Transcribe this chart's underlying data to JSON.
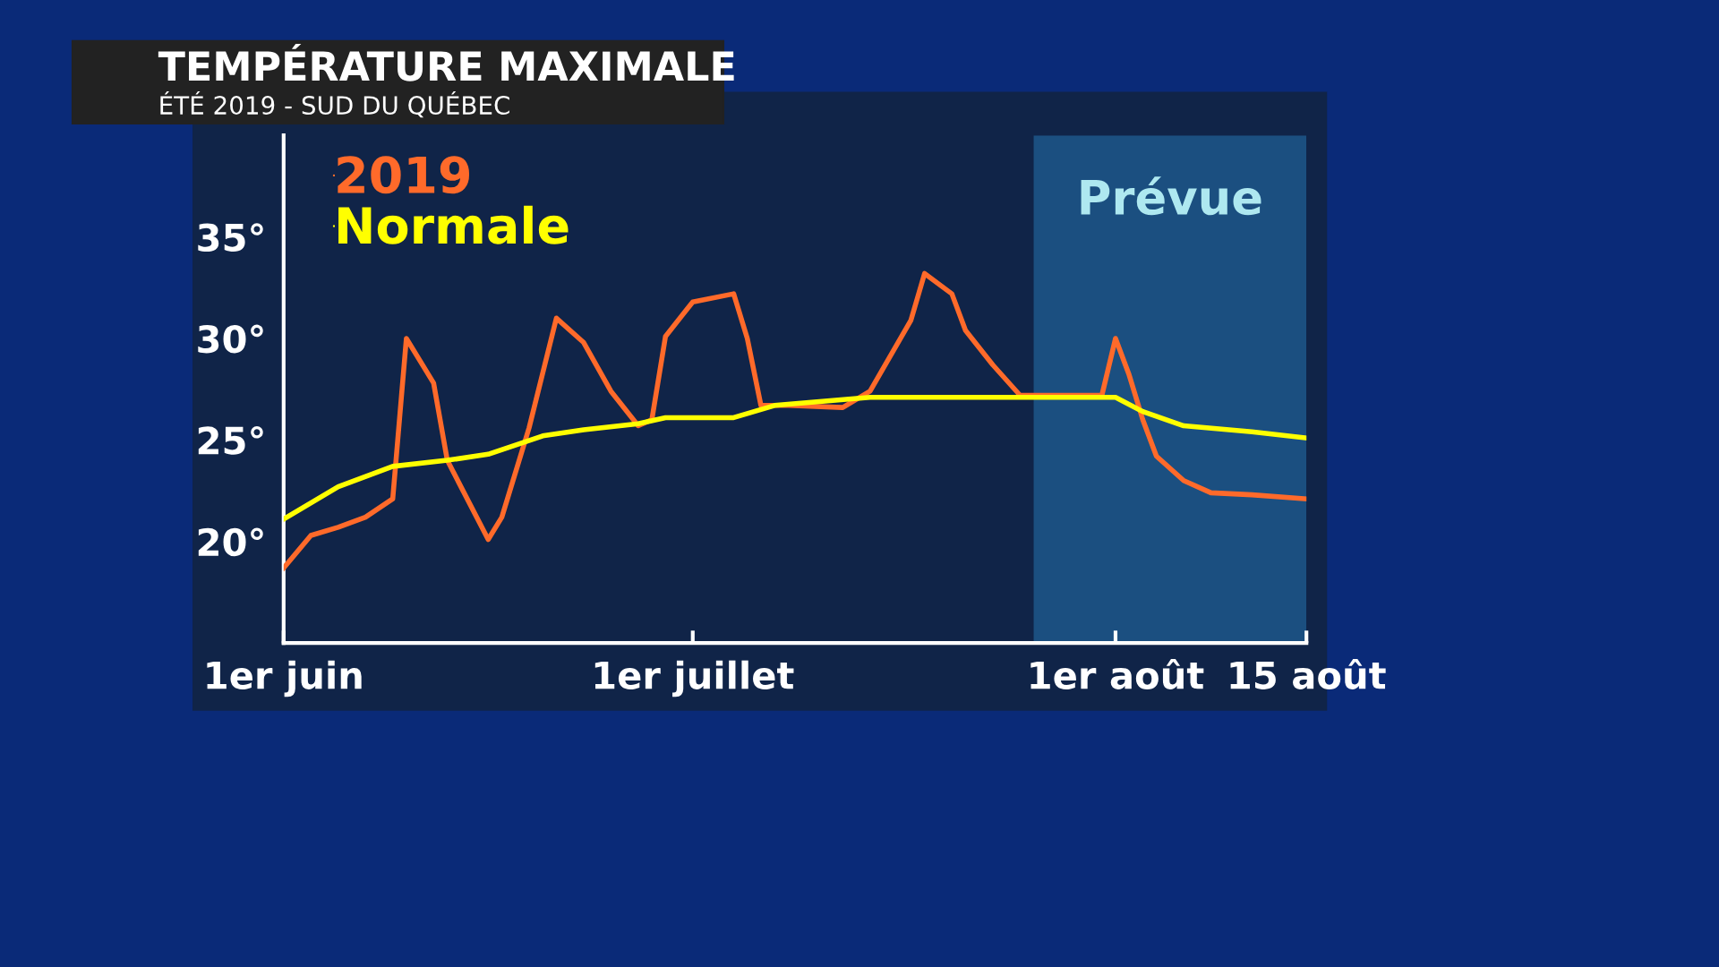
{
  "chart_data": {
    "type": "line",
    "title": "TEMPÉRATURE MAXIMALE",
    "subtitle": "ÉTÉ 2019 - SUD DU QUÉBEC",
    "series": [
      {
        "name": "2019",
        "color": "#ff6a2a",
        "x": [
          "2019-06-01",
          "2019-06-03",
          "2019-06-05",
          "2019-06-07",
          "2019-06-09",
          "2019-06-10",
          "2019-06-12",
          "2019-06-13",
          "2019-06-16",
          "2019-06-17",
          "2019-06-19",
          "2019-06-21",
          "2019-06-23",
          "2019-06-25",
          "2019-06-27",
          "2019-06-28",
          "2019-06-29",
          "2019-07-01",
          "2019-07-04",
          "2019-07-05",
          "2019-07-06",
          "2019-07-08",
          "2019-07-12",
          "2019-07-14",
          "2019-07-17",
          "2019-07-18",
          "2019-07-20",
          "2019-07-21",
          "2019-07-23",
          "2019-07-25",
          "2019-07-31",
          "2019-08-01",
          "2019-08-02",
          "2019-08-03",
          "2019-08-04",
          "2019-08-06",
          "2019-08-08",
          "2019-08-11",
          "2019-08-15"
        ],
        "values": [
          18.7,
          20.3,
          20.7,
          21.2,
          22.1,
          30.0,
          27.8,
          24.0,
          20.1,
          21.2,
          25.6,
          31.0,
          29.8,
          27.4,
          25.7,
          26.0,
          30.1,
          31.8,
          32.2,
          30.0,
          26.7,
          26.7,
          26.6,
          27.4,
          30.9,
          33.2,
          32.2,
          30.4,
          28.7,
          27.2,
          27.2,
          30.0,
          28.2,
          26.0,
          24.2,
          23.0,
          22.4,
          22.3,
          22.1
        ]
      },
      {
        "name": "Normale",
        "color": "#ffff00",
        "x": [
          "2019-06-01",
          "2019-06-05",
          "2019-06-09",
          "2019-06-13",
          "2019-06-16",
          "2019-06-20",
          "2019-06-23",
          "2019-06-27",
          "2019-06-29",
          "2019-07-04",
          "2019-07-07",
          "2019-07-14",
          "2019-08-01",
          "2019-08-03",
          "2019-08-06",
          "2019-08-11",
          "2019-08-15"
        ],
        "values": [
          21.1,
          22.7,
          23.7,
          24.0,
          24.3,
          25.2,
          25.5,
          25.8,
          26.1,
          26.1,
          26.7,
          27.1,
          27.1,
          26.4,
          25.7,
          25.4,
          25.1
        ]
      }
    ],
    "xlim": [
      "2019-06-01",
      "2019-08-15"
    ],
    "xticks": [
      {
        "value": "2019-06-01",
        "label": "1er juin"
      },
      {
        "value": "2019-07-01",
        "label": "1er juillet"
      },
      {
        "value": "2019-08-01",
        "label": "1er août"
      },
      {
        "value": "2019-08-15",
        "label": "15 août"
      }
    ],
    "ylim": [
      15,
      40
    ],
    "yticks": [
      {
        "value": 20,
        "label": "20°"
      },
      {
        "value": 25,
        "label": "25°"
      },
      {
        "value": 30,
        "label": "30°"
      },
      {
        "value": 35,
        "label": "35°"
      }
    ],
    "bands": [
      {
        "axis": "x",
        "from": "2019-07-26",
        "to": "2019-08-15",
        "label": "Prévue",
        "color": "#1b4f80"
      }
    ],
    "legend": "top left",
    "grid": false,
    "line_style": "solid",
    "marker": "none"
  }
}
